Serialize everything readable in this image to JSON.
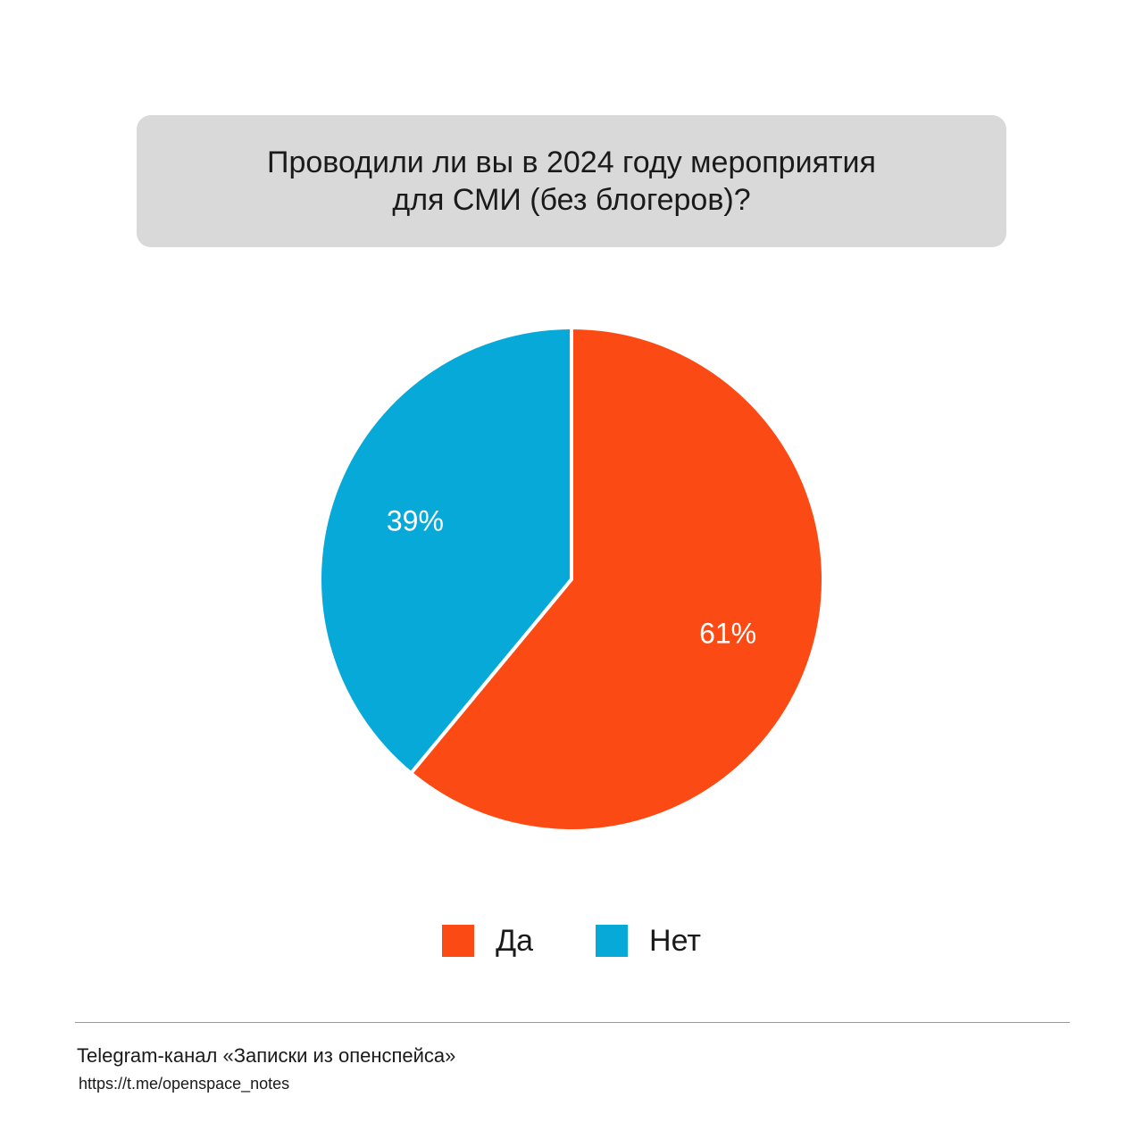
{
  "title": {
    "line1": "Проводили ли вы в 2024 году мероприятия",
    "line2": "для СМИ (без блогеров)?"
  },
  "chart_data": {
    "type": "pie",
    "title": "Проводили ли вы в 2024 году мероприятия для СМИ (без блогеров)?",
    "slices": [
      {
        "label": "Да",
        "value": 61,
        "display": "61%",
        "color": "#fc4a14"
      },
      {
        "label": "Нет",
        "value": 39,
        "display": "39%",
        "color": "#07a9d9"
      }
    ],
    "start": "12 o'clock",
    "direction": "clockwise",
    "legend": "bottom-center"
  },
  "legend": {
    "items": [
      {
        "label": "Да",
        "color": "#fc4a14"
      },
      {
        "label": "Нет",
        "color": "#07a9d9"
      }
    ]
  },
  "footer": {
    "channel": "Telegram-канал «Записки из опенспейса»",
    "link": "https://t.me/openspace_notes"
  }
}
